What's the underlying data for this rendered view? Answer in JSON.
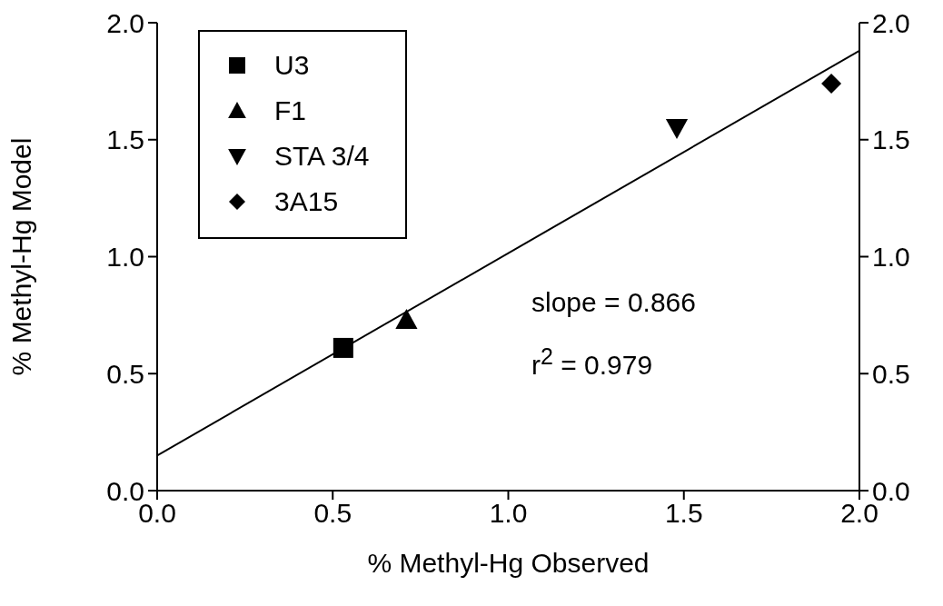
{
  "chart_data": {
    "type": "scatter",
    "xlabel": "% Methyl-Hg Observed",
    "ylabel": "% Methyl-Hg Model",
    "xlim": [
      0,
      2
    ],
    "xticks": [
      {
        "value": 0,
        "label": "0.0"
      },
      {
        "value": 0.5,
        "label": "0.5"
      },
      {
        "value": 1,
        "label": "1.0"
      },
      {
        "value": 1.5,
        "label": "1.5"
      },
      {
        "value": 2,
        "label": "2.0"
      }
    ],
    "ylim": [
      0,
      2
    ],
    "yticks": [
      {
        "value": 0,
        "label": "0.0"
      },
      {
        "value": 0.5,
        "label": "0.5"
      },
      {
        "value": 1,
        "label": "1.0"
      },
      {
        "value": 1.5,
        "label": "1.5"
      },
      {
        "value": 2,
        "label": "2.0"
      }
    ],
    "y2lim": [
      0,
      2
    ],
    "y2ticks": [
      {
        "value": 0,
        "label": "0.0"
      },
      {
        "value": 0.5,
        "label": "0.5"
      },
      {
        "value": 1,
        "label": "1.0"
      },
      {
        "value": 1.5,
        "label": "1.5"
      },
      {
        "value": 2,
        "label": "2.0"
      }
    ],
    "series": [
      {
        "name": "U3",
        "color": "#000000",
        "marker": "square",
        "x": [
          0.53
        ],
        "values": [
          0.61
        ]
      },
      {
        "name": "F1",
        "color": "#000000",
        "marker": "triangle",
        "x": [
          0.71
        ],
        "values": [
          0.73
        ]
      },
      {
        "name": "STA 3/4",
        "color": "#000000",
        "marker": "triangle-down",
        "x": [
          1.48
        ],
        "values": [
          1.55
        ]
      },
      {
        "name": "3A15",
        "color": "#000000",
        "marker": "diamond",
        "x": [
          1.92
        ],
        "values": [
          1.74
        ]
      },
      {
        "type": "line",
        "color": "#000000",
        "marker": "none",
        "line_style": "solid",
        "x": [
          0,
          2
        ],
        "values": [
          0.15,
          1.88
        ]
      }
    ],
    "annotations": [
      "slope = 0.866",
      "r$^{2}$ = 0.979"
    ],
    "legend": "top left"
  }
}
